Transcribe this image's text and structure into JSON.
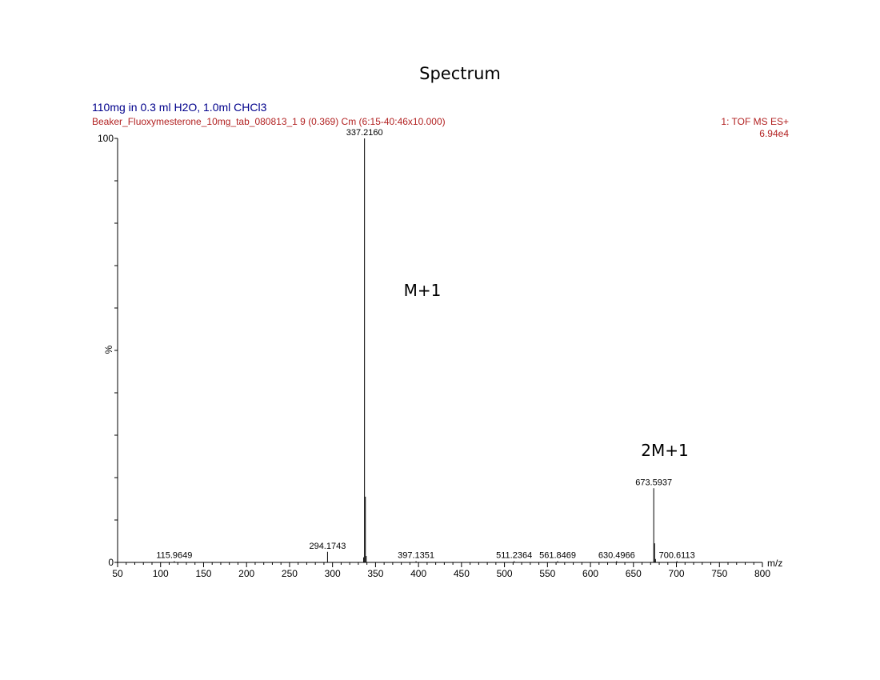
{
  "chart_data": {
    "type": "line",
    "title": "Spectrum",
    "sample": "110mg in 0.3 ml H2O, 1.0ml CHCl3",
    "run_info": "Beaker_Fluoxymesterone_10mg_tab_080813_1 9 (0.369) Cm (6:15-40:46x10.000)",
    "acquisition": "1: TOF MS ES+",
    "intensity_max": "6.94e4",
    "xlabel": "m/z",
    "ylabel": "%",
    "xlim": [
      50,
      800
    ],
    "ylim": [
      0,
      100
    ],
    "x_ticks": [
      "50",
      "100",
      "150",
      "200",
      "250",
      "300",
      "350",
      "400",
      "450",
      "500",
      "550",
      "600",
      "650",
      "700",
      "750",
      "800"
    ],
    "y_ticks": [
      "0",
      "100"
    ],
    "peak_labels": [
      {
        "mz": 115.9649,
        "label": "115.9649",
        "intensity": 0.3
      },
      {
        "mz": 294.1743,
        "label": "294.1743",
        "intensity": 2.5
      },
      {
        "mz": 337.216,
        "label": "337.2160",
        "intensity": 100
      },
      {
        "mz": 397.1351,
        "label": "397.1351",
        "intensity": 0.3
      },
      {
        "mz": 511.2364,
        "label": "511.2364",
        "intensity": 0.3
      },
      {
        "mz": 561.8469,
        "label": "561.8469",
        "intensity": 0.3
      },
      {
        "mz": 630.4966,
        "label": "630.4966",
        "intensity": 0.3
      },
      {
        "mz": 673.5937,
        "label": "673.5937",
        "intensity": 17.5
      },
      {
        "mz": 700.6113,
        "label": "700.6113",
        "intensity": 0.3
      }
    ],
    "minor_peaks": [
      {
        "mz": 336.2,
        "intensity": 1.2
      },
      {
        "mz": 338.22,
        "intensity": 15.5
      },
      {
        "mz": 339.2,
        "intensity": 1.5
      },
      {
        "mz": 674.6,
        "intensity": 4.5
      },
      {
        "mz": 675.6,
        "intensity": 0.8
      }
    ],
    "annotations": [
      "M+1",
      "2M+1"
    ],
    "colors": {
      "sample": "#00008B",
      "meta": "#B22222",
      "trace": "#000000"
    }
  }
}
